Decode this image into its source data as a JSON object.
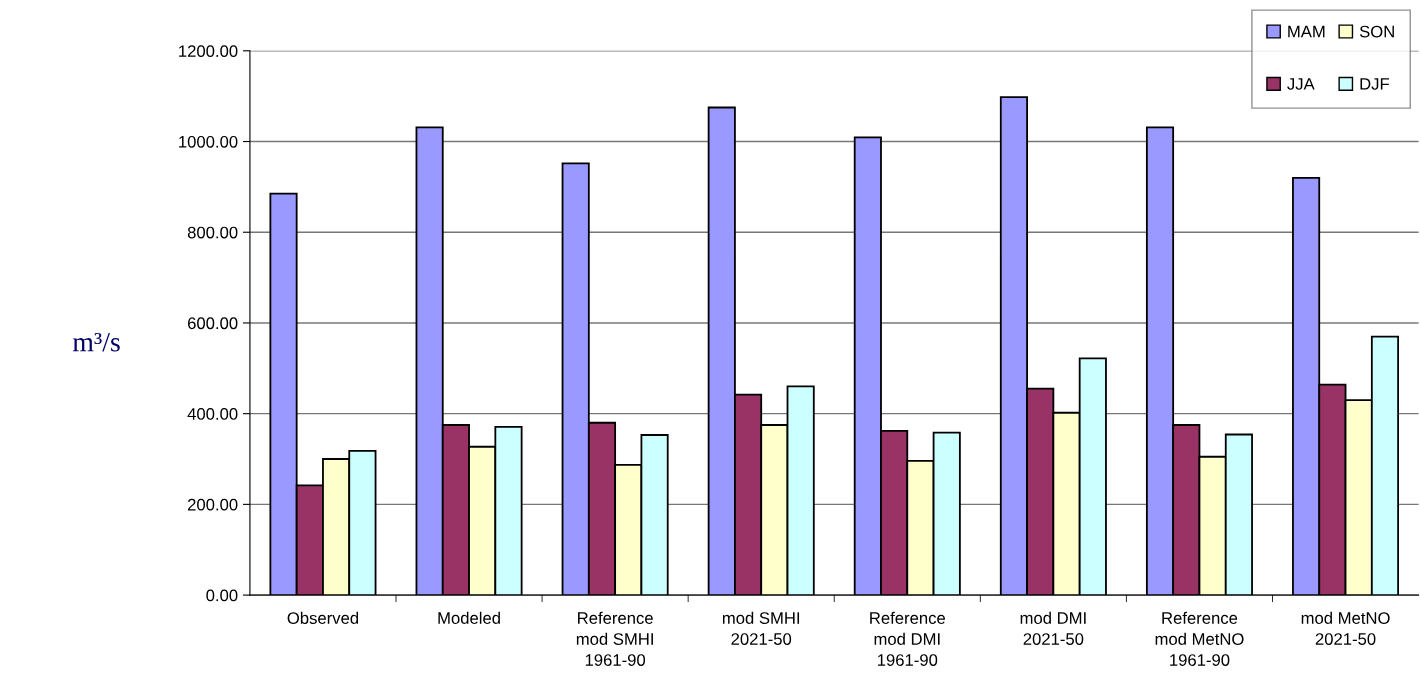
{
  "chart_data": {
    "type": "bar",
    "ylabel": "m³/s",
    "categories": [
      "Observed",
      "Modeled",
      "Reference\nmod SMHI\n1961-90",
      "mod SMHI\n2021-50",
      "Reference\nmod DMI\n1961-90",
      "mod DMI\n2021-50",
      "Reference\nmod MetNO\n1961-90",
      "mod MetNO\n2021-50"
    ],
    "series": [
      {
        "name": "MAM",
        "color": "#9999ff",
        "values": [
          885,
          1031,
          952,
          1075,
          1009,
          1098,
          1031,
          920
        ]
      },
      {
        "name": "JJA",
        "color": "#993366",
        "values": [
          242,
          375,
          380,
          442,
          362,
          455,
          375,
          464
        ]
      },
      {
        "name": "SON",
        "color": "#ffffcc",
        "values": [
          300,
          327,
          287,
          375,
          296,
          402,
          305,
          430
        ]
      },
      {
        "name": "DJF",
        "color": "#ccffff",
        "values": [
          318,
          371,
          353,
          460,
          358,
          522,
          354,
          570
        ]
      }
    ],
    "ylim": [
      0,
      1200
    ],
    "yticks": [
      {
        "value": 0,
        "label": "0.00"
      },
      {
        "value": 200,
        "label": "200.00"
      },
      {
        "value": 400,
        "label": "400.00"
      },
      {
        "value": 600,
        "label": "600.00"
      },
      {
        "value": 800,
        "label": "800.00"
      },
      {
        "value": 1000,
        "label": "1000.00"
      },
      {
        "value": 1200,
        "label": "1200.00"
      }
    ],
    "grid": "y",
    "legend": "top right"
  }
}
